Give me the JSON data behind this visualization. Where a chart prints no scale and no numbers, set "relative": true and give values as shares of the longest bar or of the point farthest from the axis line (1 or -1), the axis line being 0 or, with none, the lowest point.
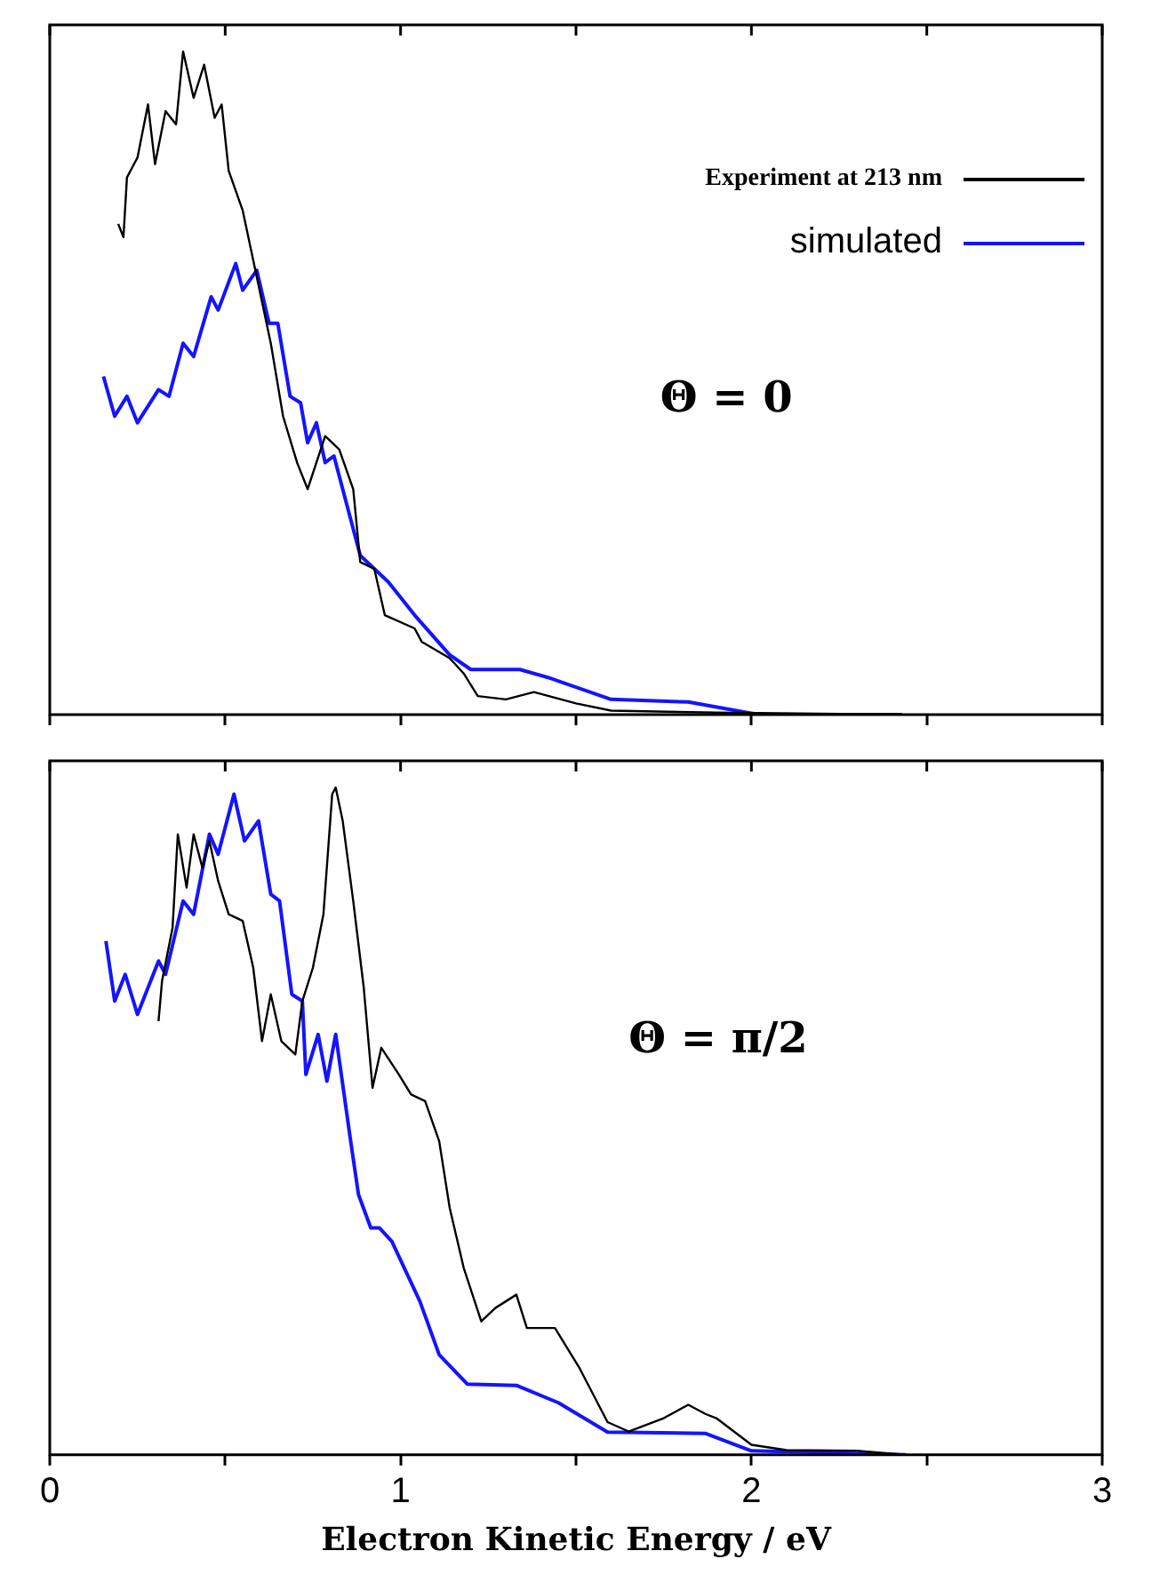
{
  "chart_data": [
    {
      "type": "line",
      "relative": true,
      "legend": "top right",
      "grid": false,
      "marker": "none",
      "line_style": "solid",
      "tick_labels": false,
      "xlim": [
        0,
        3
      ],
      "xticks": [
        0,
        {
          "value": 0.5,
          "label": null
        },
        1,
        {
          "value": 1.5,
          "label": null
        },
        2,
        {
          "value": 2.5,
          "label": null
        },
        3
      ],
      "annotations": [
        "Θ = 0"
      ],
      "series": [
        {
          "name": "Experiment at 213 nm",
          "color": "#000000",
          "x": [
            0.195,
            0.21,
            0.22,
            0.25,
            0.28,
            0.3,
            0.33,
            0.36,
            0.38,
            0.41,
            0.44,
            0.47,
            0.49,
            0.51,
            0.55,
            0.59,
            0.63,
            0.665,
            0.705,
            0.735,
            0.785,
            0.825,
            0.865,
            0.885,
            0.925,
            0.955,
            1.04,
            1.06,
            1.14,
            1.18,
            1.22,
            1.3,
            1.38,
            1.5,
            1.6,
            1.9,
            2.43
          ],
          "values": [
            0.74,
            0.72,
            0.81,
            0.84,
            0.92,
            0.83,
            0.91,
            0.89,
            1.0,
            0.93,
            0.98,
            0.9,
            0.92,
            0.82,
            0.76,
            0.66,
            0.56,
            0.45,
            0.38,
            0.34,
            0.42,
            0.4,
            0.34,
            0.23,
            0.22,
            0.15,
            0.13,
            0.11,
            0.085,
            0.062,
            0.028,
            0.023,
            0.034,
            0.017,
            0.006,
            0.003,
            0
          ]
        },
        {
          "name": "simulated",
          "color": "#1414ff",
          "x": [
            0.153,
            0.185,
            0.22,
            0.25,
            0.31,
            0.34,
            0.38,
            0.41,
            0.46,
            0.48,
            0.53,
            0.55,
            0.59,
            0.625,
            0.65,
            0.685,
            0.715,
            0.735,
            0.76,
            0.785,
            0.81,
            0.845,
            0.885,
            0.965,
            1.04,
            1.14,
            1.2,
            1.34,
            1.42,
            1.6,
            1.82,
            2.02,
            2.43
          ],
          "values": [
            0.51,
            0.45,
            0.48,
            0.44,
            0.49,
            0.48,
            0.56,
            0.54,
            0.63,
            0.61,
            0.68,
            0.64,
            0.67,
            0.59,
            0.59,
            0.48,
            0.47,
            0.41,
            0.44,
            0.38,
            0.39,
            0.32,
            0.24,
            0.2,
            0.15,
            0.09,
            0.068,
            0.068,
            0.056,
            0.023,
            0.019,
            0,
            0
          ]
        }
      ]
    },
    {
      "type": "line",
      "relative": true,
      "legend": false,
      "grid": false,
      "marker": "none",
      "line_style": "solid",
      "tick_labels": "x",
      "xlabel": "Electron Kinetic Energy / eV",
      "xlim": [
        0,
        3
      ],
      "xticks": [
        0,
        {
          "value": 0.5,
          "label": null
        },
        1,
        {
          "value": 1.5,
          "label": null
        },
        2,
        {
          "value": 2.5,
          "label": null
        },
        3
      ],
      "annotations": [
        "Θ = π/2"
      ],
      "series": [
        {
          "color": "#000000",
          "x": [
            0.31,
            0.32,
            0.35,
            0.365,
            0.39,
            0.41,
            0.435,
            0.455,
            0.48,
            0.51,
            0.55,
            0.58,
            0.605,
            0.63,
            0.66,
            0.7,
            0.72,
            0.75,
            0.78,
            0.805,
            0.815,
            0.835,
            0.865,
            0.895,
            0.92,
            0.945,
            0.995,
            1.03,
            1.07,
            1.11,
            1.14,
            1.18,
            1.23,
            1.27,
            1.33,
            1.36,
            1.44,
            1.51,
            1.59,
            1.65,
            1.75,
            1.82,
            1.87,
            1.9,
            2.0,
            2.1,
            2.3,
            2.44
          ],
          "values": [
            0.65,
            0.71,
            0.79,
            0.93,
            0.85,
            0.93,
            0.88,
            0.92,
            0.86,
            0.81,
            0.8,
            0.73,
            0.62,
            0.69,
            0.62,
            0.6,
            0.68,
            0.73,
            0.81,
            0.99,
            1.0,
            0.95,
            0.83,
            0.7,
            0.55,
            0.61,
            0.57,
            0.54,
            0.53,
            0.47,
            0.37,
            0.28,
            0.2,
            0.22,
            0.24,
            0.19,
            0.19,
            0.13,
            0.049,
            0.035,
            0.055,
            0.075,
            0.061,
            0.055,
            0.015,
            0.007,
            0.006,
            0
          ]
        },
        {
          "color": "#1414ff",
          "x": [
            0.16,
            0.185,
            0.215,
            0.25,
            0.31,
            0.33,
            0.38,
            0.41,
            0.455,
            0.48,
            0.525,
            0.555,
            0.595,
            0.63,
            0.655,
            0.69,
            0.72,
            0.73,
            0.765,
            0.79,
            0.815,
            0.855,
            0.88,
            0.915,
            0.94,
            0.975,
            1.055,
            1.11,
            1.19,
            1.33,
            1.45,
            1.59,
            1.87,
            2.0,
            2.44
          ],
          "values": [
            0.77,
            0.68,
            0.72,
            0.66,
            0.74,
            0.72,
            0.83,
            0.81,
            0.93,
            0.9,
            0.99,
            0.92,
            0.95,
            0.84,
            0.83,
            0.69,
            0.68,
            0.57,
            0.63,
            0.56,
            0.63,
            0.48,
            0.39,
            0.34,
            0.34,
            0.32,
            0.23,
            0.15,
            0.106,
            0.104,
            0.078,
            0.034,
            0.032,
            0.006,
            0
          ]
        }
      ]
    }
  ]
}
